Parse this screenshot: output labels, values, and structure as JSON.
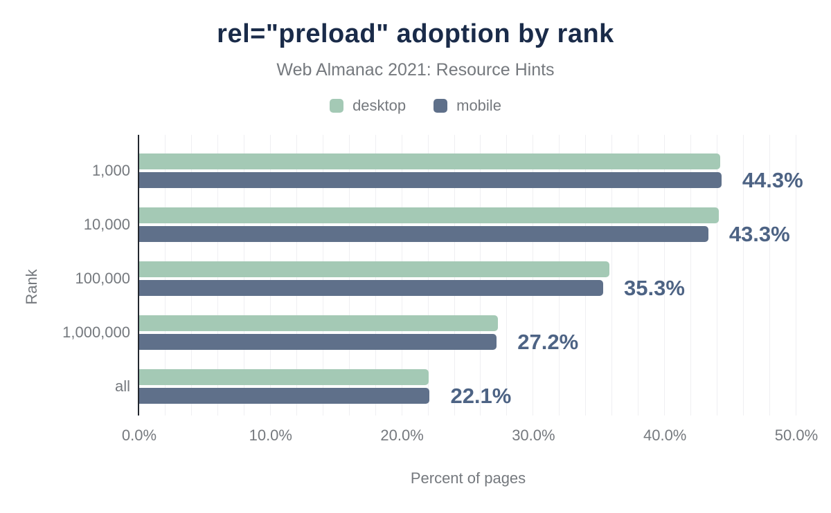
{
  "title": "rel=\"preload\" adoption by rank",
  "subtitle": "Web Almanac 2021: Resource Hints",
  "colors": {
    "desktop": "#a4c9b5",
    "mobile": "#5f708a",
    "title_text": "#1a2b49",
    "muted_text": "#75797e",
    "value_label_text": "#4d6384",
    "axis_line": "#23272f",
    "gridline": "#efeff2",
    "background": "#ffffff"
  },
  "x_axis": {
    "title": "Percent of pages",
    "ticks": [
      {
        "label": "0.0%",
        "value": 0
      },
      {
        "label": "10.0%",
        "value": 10
      },
      {
        "label": "20.0%",
        "value": 20
      },
      {
        "label": "30.0%",
        "value": 30
      },
      {
        "label": "40.0%",
        "value": 40
      },
      {
        "label": "50.0%",
        "value": 50
      }
    ],
    "min": 0,
    "max": 50
  },
  "y_axis": {
    "title": "Rank"
  },
  "chart_data": {
    "type": "bar",
    "orientation": "horizontal",
    "title": "rel=\"preload\" adoption by rank",
    "subtitle": "Web Almanac 2021: Resource Hints",
    "categories": [
      "1,000",
      "10,000",
      "100,000",
      "1,000,000",
      "all"
    ],
    "series": [
      {
        "name": "desktop",
        "color": "#a4c9b5",
        "values": [
          44.2,
          44.1,
          35.8,
          27.3,
          22.0
        ]
      },
      {
        "name": "mobile",
        "color": "#5f708a",
        "values": [
          44.3,
          43.3,
          35.3,
          27.2,
          22.1
        ]
      }
    ],
    "bar_labels": {
      "labeled_series": "mobile",
      "values": [
        "44.3%",
        "43.3%",
        "35.3%",
        "27.2%",
        "22.1%"
      ]
    },
    "xlabel": "Percent of pages",
    "ylabel": "Rank",
    "xlim": [
      0,
      50
    ],
    "gridlines": {
      "axis": "x",
      "interval": 2,
      "visible": true
    },
    "legend_position": "top"
  }
}
